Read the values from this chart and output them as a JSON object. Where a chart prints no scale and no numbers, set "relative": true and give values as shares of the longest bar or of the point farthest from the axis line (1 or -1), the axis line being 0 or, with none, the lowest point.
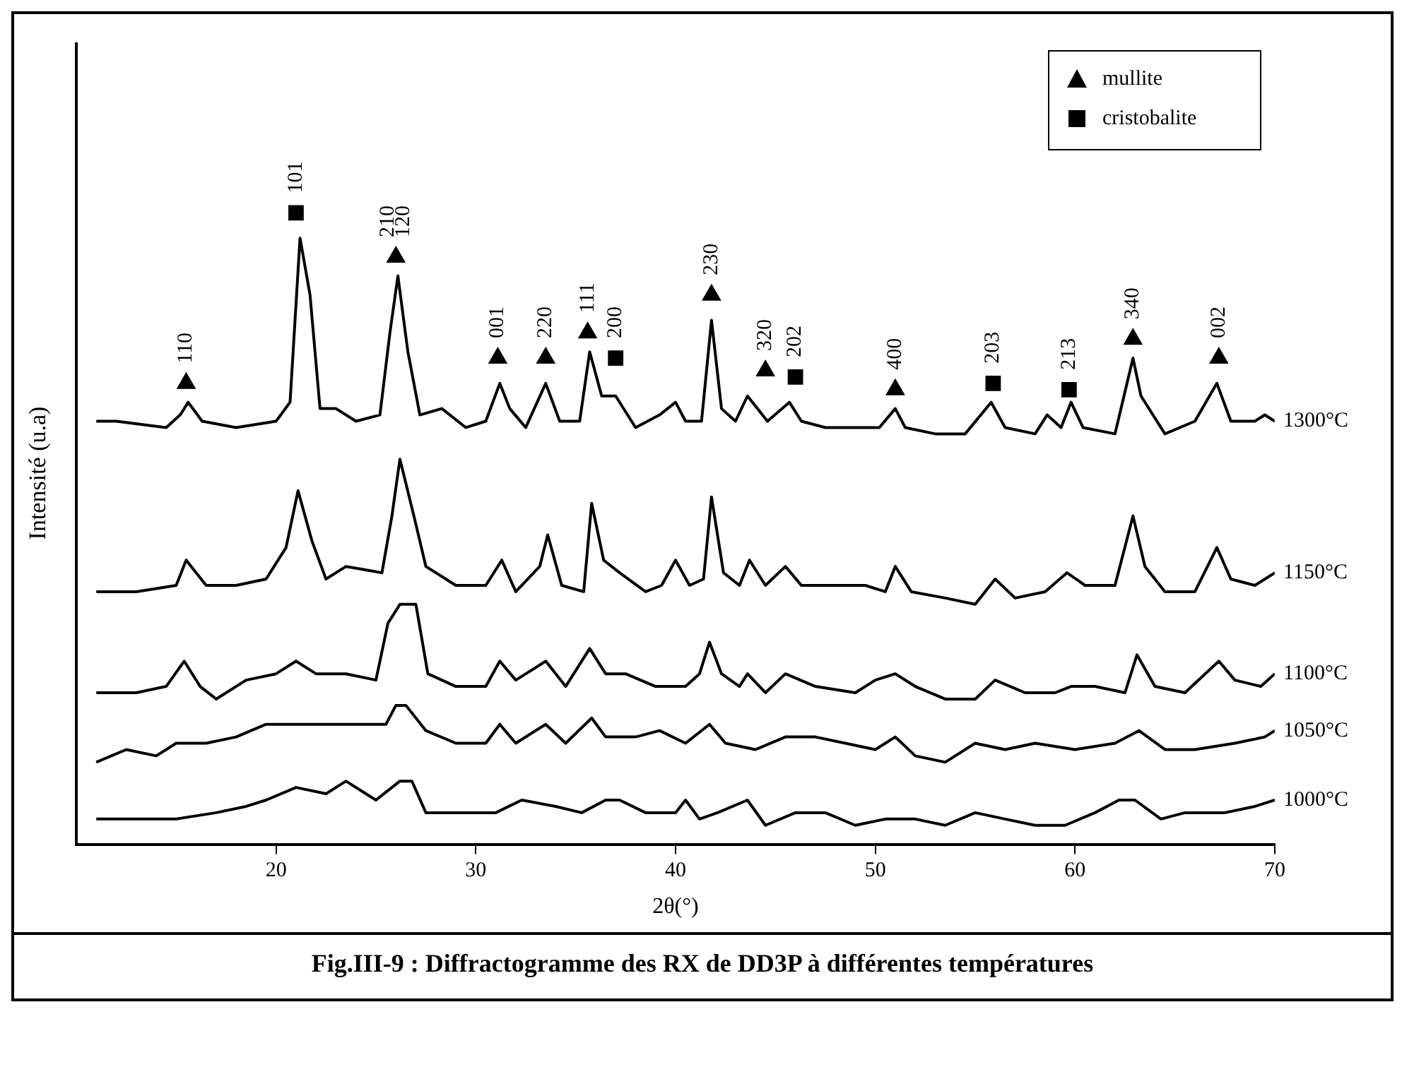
{
  "chart_data": {
    "type": "line",
    "title": "Fig.III-9 : Diffractogramme des RX de DD3P à différentes températures",
    "xlabel": "2θ(°)",
    "ylabel": "Intensité (u.a)",
    "relative": true,
    "xlim": [
      10,
      70
    ],
    "xticks": [
      20,
      30,
      40,
      50,
      60,
      70
    ],
    "grid": false,
    "legend": "top right",
    "marker": "none",
    "series": [
      {
        "name": "1300°C",
        "color": "#000000",
        "x": [
          11,
          12,
          14.5,
          15.2,
          15.6,
          16.3,
          18,
          20,
          20.7,
          21.2,
          21.7,
          22.2,
          23,
          24,
          25.2,
          25.7,
          26.1,
          26.6,
          27.2,
          28.3,
          29.5,
          30.5,
          31.2,
          31.7,
          32.5,
          33.5,
          34.2,
          35.2,
          35.7,
          36.3,
          37,
          38,
          39.2,
          40,
          40.5,
          41.3,
          41.8,
          42.3,
          43,
          43.6,
          44.6,
          45.7,
          46.3,
          47.5,
          49,
          50.2,
          51,
          51.5,
          53,
          54.5,
          55.8,
          56.5,
          58,
          58.6,
          59.3,
          59.8,
          60.4,
          62,
          62.9,
          63.3,
          64.5,
          66,
          67.1,
          67.8,
          69,
          69.5,
          70
        ],
        "values": [
          0.67,
          0.67,
          0.66,
          0.68,
          0.7,
          0.67,
          0.66,
          0.67,
          0.7,
          0.96,
          0.87,
          0.69,
          0.69,
          0.67,
          0.68,
          0.81,
          0.9,
          0.78,
          0.68,
          0.69,
          0.66,
          0.67,
          0.73,
          0.69,
          0.66,
          0.73,
          0.67,
          0.67,
          0.78,
          0.71,
          0.71,
          0.66,
          0.68,
          0.7,
          0.67,
          0.67,
          0.83,
          0.69,
          0.67,
          0.71,
          0.67,
          0.7,
          0.67,
          0.66,
          0.66,
          0.66,
          0.69,
          0.66,
          0.65,
          0.65,
          0.7,
          0.66,
          0.65,
          0.68,
          0.66,
          0.7,
          0.66,
          0.65,
          0.77,
          0.71,
          0.65,
          0.67,
          0.73,
          0.67,
          0.67,
          0.68,
          0.67
        ]
      },
      {
        "name": "1150°C",
        "color": "#000000",
        "x": [
          11,
          13,
          15,
          15.5,
          16.5,
          18,
          19.5,
          20.5,
          21.1,
          21.8,
          22.5,
          23.5,
          25.3,
          25.8,
          26.2,
          26.9,
          27.5,
          29,
          30.5,
          31.3,
          32,
          33.2,
          33.6,
          34.3,
          35.4,
          35.8,
          36.4,
          37.2,
          38.5,
          39.3,
          40,
          40.7,
          41.4,
          41.8,
          42.4,
          43.2,
          43.7,
          44.5,
          45.5,
          46.3,
          48,
          49.5,
          50.5,
          51,
          51.8,
          53.5,
          55,
          56,
          57,
          58.5,
          59.6,
          60.5,
          62,
          62.9,
          63.5,
          64.5,
          66,
          67.1,
          67.8,
          69,
          70
        ],
        "values": [
          0.4,
          0.4,
          0.41,
          0.45,
          0.41,
          0.41,
          0.42,
          0.47,
          0.56,
          0.48,
          0.42,
          0.44,
          0.43,
          0.52,
          0.61,
          0.52,
          0.44,
          0.41,
          0.41,
          0.45,
          0.4,
          0.44,
          0.49,
          0.41,
          0.4,
          0.54,
          0.45,
          0.43,
          0.4,
          0.41,
          0.45,
          0.41,
          0.42,
          0.55,
          0.43,
          0.41,
          0.45,
          0.41,
          0.44,
          0.41,
          0.41,
          0.41,
          0.4,
          0.44,
          0.4,
          0.39,
          0.38,
          0.42,
          0.39,
          0.4,
          0.43,
          0.41,
          0.41,
          0.52,
          0.44,
          0.4,
          0.4,
          0.47,
          0.42,
          0.41,
          0.43
        ]
      },
      {
        "name": "1100°C",
        "color": "#000000",
        "x": [
          11,
          13,
          14.5,
          15.4,
          16.2,
          17,
          18.5,
          20,
          21,
          22,
          23.5,
          25,
          25.6,
          26.2,
          27,
          27.6,
          29,
          30.5,
          31.2,
          32,
          33.5,
          34.5,
          35.7,
          36.5,
          37.5,
          39,
          40.5,
          41.2,
          41.7,
          42.3,
          43.2,
          43.6,
          44.5,
          45.5,
          47,
          49,
          50,
          51,
          52,
          53.5,
          55,
          56,
          57.5,
          59,
          59.8,
          61,
          62.5,
          63.1,
          64,
          65.5,
          67.2,
          68,
          69.3,
          70
        ],
        "values": [
          0.24,
          0.24,
          0.25,
          0.29,
          0.25,
          0.23,
          0.26,
          0.27,
          0.29,
          0.27,
          0.27,
          0.26,
          0.35,
          0.38,
          0.38,
          0.27,
          0.25,
          0.25,
          0.29,
          0.26,
          0.29,
          0.25,
          0.31,
          0.27,
          0.27,
          0.25,
          0.25,
          0.27,
          0.32,
          0.27,
          0.25,
          0.27,
          0.24,
          0.27,
          0.25,
          0.24,
          0.26,
          0.27,
          0.25,
          0.23,
          0.23,
          0.26,
          0.24,
          0.24,
          0.25,
          0.25,
          0.24,
          0.3,
          0.25,
          0.24,
          0.29,
          0.26,
          0.25,
          0.27
        ]
      },
      {
        "name": "1050°C",
        "color": "#000000",
        "x": [
          11,
          12.5,
          14,
          15,
          16.5,
          18,
          19.5,
          21,
          22.5,
          24,
          25.5,
          26,
          26.5,
          27.5,
          29,
          30.5,
          31.2,
          32,
          33.5,
          34.5,
          35.8,
          36.5,
          38,
          39.2,
          40.5,
          41.7,
          42.5,
          44,
          45.5,
          47,
          48.5,
          50,
          51,
          52,
          53.5,
          55,
          56.5,
          58,
          60,
          62,
          63.2,
          64.5,
          66,
          68,
          69.5,
          70
        ],
        "values": [
          0.13,
          0.15,
          0.14,
          0.16,
          0.16,
          0.17,
          0.19,
          0.19,
          0.19,
          0.19,
          0.19,
          0.22,
          0.22,
          0.18,
          0.16,
          0.16,
          0.19,
          0.16,
          0.19,
          0.16,
          0.2,
          0.17,
          0.17,
          0.18,
          0.16,
          0.19,
          0.16,
          0.15,
          0.17,
          0.17,
          0.16,
          0.15,
          0.17,
          0.14,
          0.13,
          0.16,
          0.15,
          0.16,
          0.15,
          0.16,
          0.18,
          0.15,
          0.15,
          0.16,
          0.17,
          0.18
        ]
      },
      {
        "name": "1000°C",
        "color": "#000000",
        "x": [
          11,
          13,
          15,
          17,
          18.5,
          19.5,
          21,
          22.5,
          23.5,
          25,
          26.2,
          26.8,
          27.5,
          29,
          31,
          32.3,
          34,
          35.3,
          36.5,
          37.2,
          38.5,
          40,
          40.5,
          41.2,
          42.1,
          43.6,
          44.5,
          46,
          47.5,
          49,
          50.5,
          52,
          53.5,
          55,
          56.5,
          58,
          59.5,
          61,
          62.2,
          63,
          64.3,
          65.5,
          67.5,
          69,
          70
        ],
        "values": [
          0.04,
          0.04,
          0.04,
          0.05,
          0.06,
          0.07,
          0.09,
          0.08,
          0.1,
          0.07,
          0.1,
          0.1,
          0.05,
          0.05,
          0.05,
          0.07,
          0.06,
          0.05,
          0.07,
          0.07,
          0.05,
          0.05,
          0.07,
          0.04,
          0.05,
          0.07,
          0.03,
          0.05,
          0.05,
          0.03,
          0.04,
          0.04,
          0.03,
          0.05,
          0.04,
          0.03,
          0.03,
          0.05,
          0.07,
          0.07,
          0.04,
          0.05,
          0.05,
          0.06,
          0.07
        ]
      },
      {
        "name": "mullite",
        "type": "scatter",
        "marker": "triangle",
        "color": "#000000",
        "x": [
          15.5,
          26.0,
          31.1,
          33.5,
          35.6,
          41.8,
          44.5,
          51.0,
          62.9,
          67.2
        ],
        "values": [
          0.73,
          0.93,
          0.77,
          0.77,
          0.81,
          0.87,
          0.75,
          0.72,
          0.8,
          0.77
        ]
      },
      {
        "name": "cristobalite",
        "type": "scatter",
        "marker": "square",
        "color": "#000000",
        "x": [
          21.0,
          37.0,
          46.0,
          55.9,
          59.7
        ],
        "values": [
          1.0,
          0.77,
          0.74,
          0.73,
          0.72
        ]
      }
    ],
    "annotations": [
      {
        "text": "110",
        "x": 15.5,
        "y": 0.73
      },
      {
        "text": "101",
        "x": 21.0,
        "y": 1.0
      },
      {
        "text": "210",
        "x": 25.6,
        "y": 0.93
      },
      {
        "text": "120",
        "x": 26.4,
        "y": 0.93
      },
      {
        "text": "001",
        "x": 31.1,
        "y": 0.77
      },
      {
        "text": "220",
        "x": 33.5,
        "y": 0.77
      },
      {
        "text": "111",
        "x": 35.6,
        "y": 0.81
      },
      {
        "text": "200",
        "x": 37.0,
        "y": 0.77
      },
      {
        "text": "230",
        "x": 41.8,
        "y": 0.87
      },
      {
        "text": "320",
        "x": 44.5,
        "y": 0.75
      },
      {
        "text": "202",
        "x": 46.0,
        "y": 0.74
      },
      {
        "text": "400",
        "x": 51.0,
        "y": 0.72
      },
      {
        "text": "203",
        "x": 55.9,
        "y": 0.73
      },
      {
        "text": "213",
        "x": 59.7,
        "y": 0.72
      },
      {
        "text": "340",
        "x": 62.9,
        "y": 0.8
      },
      {
        "text": "002",
        "x": 67.2,
        "y": 0.77
      }
    ]
  }
}
